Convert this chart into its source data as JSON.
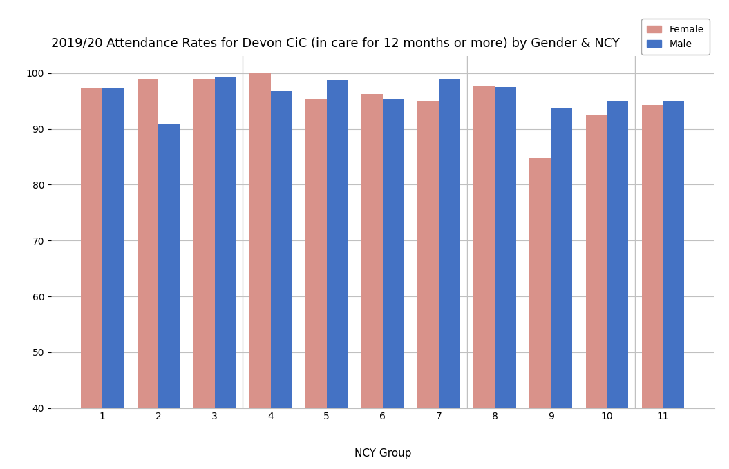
{
  "title": "2019/20 Attendance Rates for Devon CiC (in care for 12 months or more) by Gender & NCY",
  "xlabel": "NCY Group",
  "ncy_groups": [
    1,
    2,
    3,
    4,
    5,
    6,
    7,
    8,
    9,
    10,
    11
  ],
  "key_stages": {
    "Key Stage 1": [
      1,
      2
    ],
    "Key Stage 2": [
      3,
      4,
      5,
      6
    ],
    "Key Stage 3": [
      7,
      8,
      9
    ],
    "Key Stage 4": [
      10,
      11
    ]
  },
  "female_values": [
    97.2,
    98.8,
    99.0,
    100.0,
    95.4,
    96.3,
    95.0,
    97.8,
    84.8,
    92.4,
    94.3
  ],
  "male_values": [
    97.2,
    90.8,
    99.4,
    96.7,
    98.7,
    95.3,
    98.8,
    97.5,
    93.7,
    95.0,
    95.0
  ],
  "female_color": "#d9928a",
  "male_color": "#4472c4",
  "ylim": [
    40,
    103
  ],
  "yticks": [
    40,
    50,
    60,
    70,
    80,
    90,
    100
  ],
  "bar_width": 0.38,
  "title_fontsize": 13,
  "legend_fontsize": 10,
  "axis_fontsize": 11,
  "tick_fontsize": 10,
  "background_color": "#ffffff",
  "grid_color": "#c0c0c0",
  "separator_color": "#c0c0c0",
  "stage_boundaries": [
    2.5,
    6.5,
    9.5
  ]
}
